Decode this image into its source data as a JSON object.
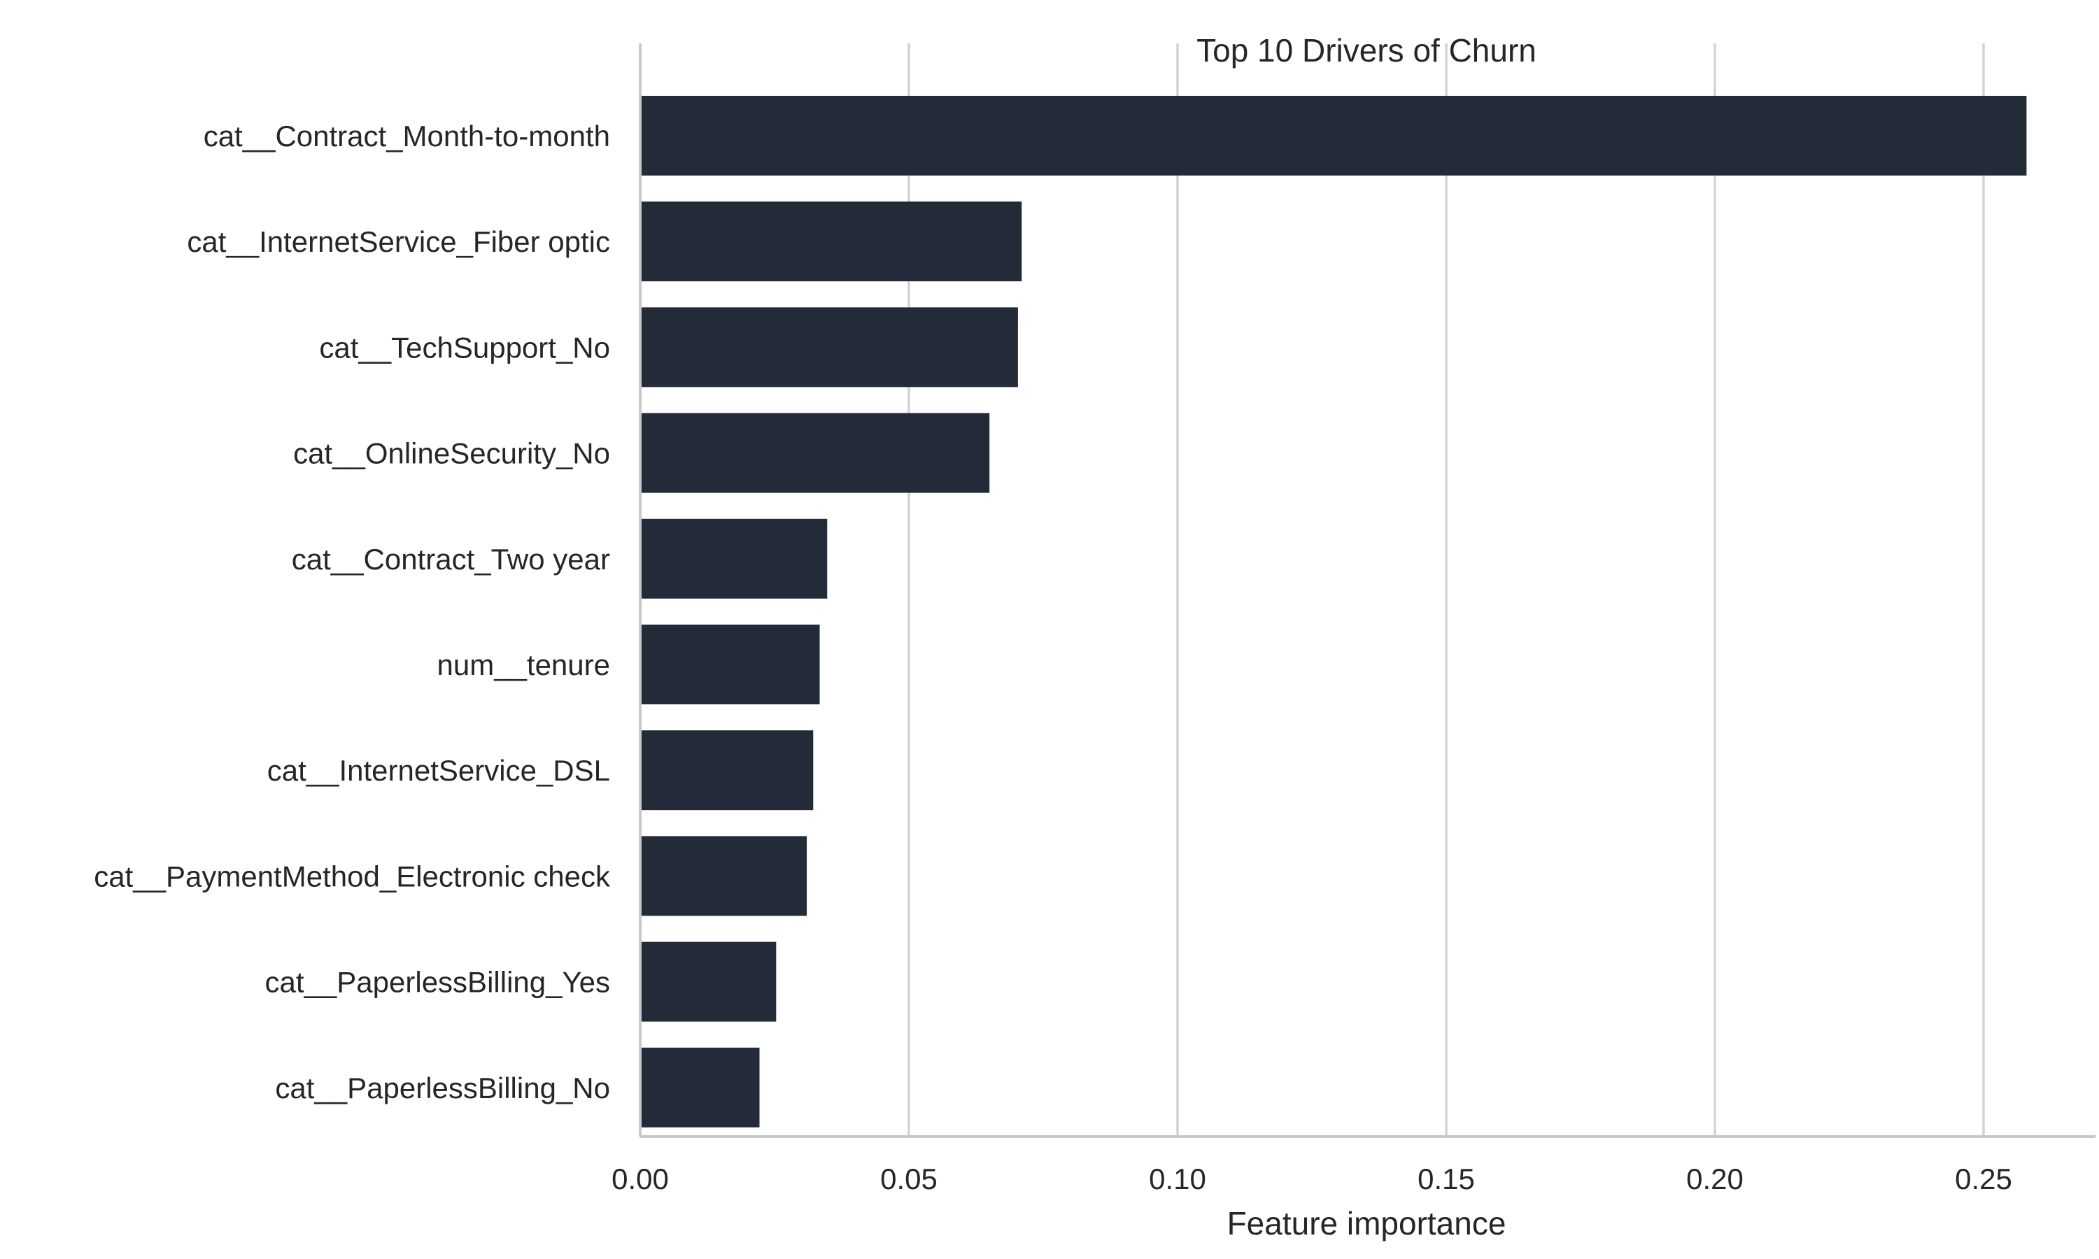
{
  "chart_data": {
    "type": "bar",
    "orientation": "horizontal",
    "title": "Top 10 Drivers of Churn",
    "xlabel": "Feature importance",
    "ylabel": "",
    "xlim": [
      0,
      0.27
    ],
    "xticks": [
      0.0,
      0.05,
      0.1,
      0.15,
      0.2,
      0.25
    ],
    "xtick_labels": [
      "0.00",
      "0.05",
      "0.10",
      "0.15",
      "0.20",
      "0.25"
    ],
    "grid": "vertical",
    "bar_color": "#232a38",
    "categories": [
      "cat__Contract_Month-to-month",
      "cat__InternetService_Fiber optic",
      "cat__TechSupport_No",
      "cat__OnlineSecurity_No",
      "cat__Contract_Two year",
      "num__tenure",
      "cat__InternetService_DSL",
      "cat__PaymentMethod_Electronic check",
      "cat__PaperlessBilling_Yes",
      "cat__PaperlessBilling_No"
    ],
    "values": [
      0.258,
      0.071,
      0.0703,
      0.065,
      0.0348,
      0.0334,
      0.0322,
      0.031,
      0.0253,
      0.0222
    ]
  }
}
